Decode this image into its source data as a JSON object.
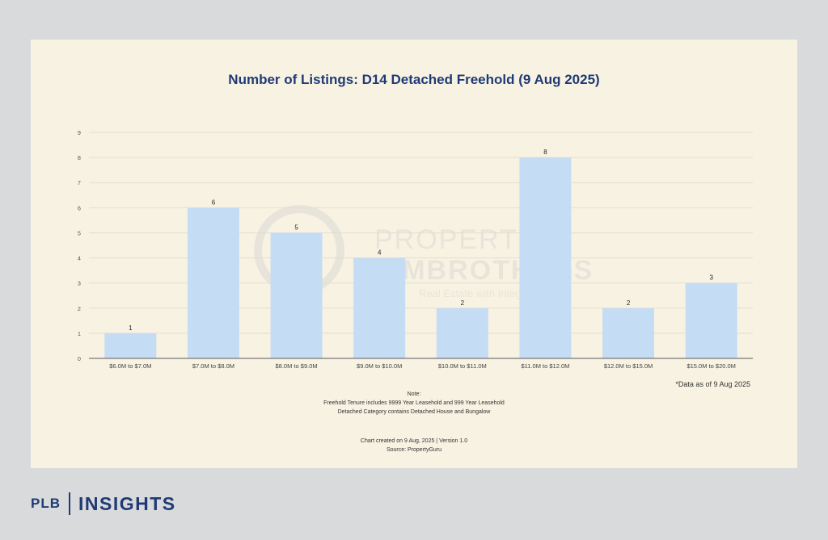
{
  "watermark": {
    "line1": "PROPERTY",
    "line2": "LIMBROTHERS",
    "line3": "Real Estate with Integrity"
  },
  "note": {
    "heading": "Note:",
    "line1": "Freehold Tenure includes 9999 Year Leasehold and 999 Year Leasehold",
    "line2": "Detached Category contains Detached House and Bungalow"
  },
  "credits": {
    "created": "Chart created on 9 Aug, 2025 | Version 1.0",
    "source": "Source: PropertyGuru"
  },
  "as_of": "*Data as of 9 Aug 2025",
  "brand": {
    "left": "PLB",
    "right": "INSIGHTS"
  },
  "colors": {
    "bar": "#c5dcf5",
    "title": "#1f3a74",
    "card": "#f8f2e3",
    "page": "#d9dadb"
  },
  "chart_data": {
    "type": "bar",
    "title": "Number of Listings: D14 Detached Freehold (9 Aug 2025)",
    "xlabel": "",
    "ylabel": "",
    "categories": [
      "$6.0M to $7.0M",
      "$7.0M to $8.0M",
      "$8.0M to $9.0M",
      "$9.0M to $10.0M",
      "$10.0M to $11.0M",
      "$11.0M to $12.0M",
      "$12.0M to $15.0M",
      "$15.0M to $20.0M"
    ],
    "values": [
      1,
      6,
      5,
      4,
      2,
      8,
      2,
      3
    ],
    "ylim": [
      0,
      9
    ],
    "yticks": [
      0,
      1,
      2,
      3,
      4,
      5,
      6,
      7,
      8,
      9
    ],
    "grid": true,
    "legend": "none"
  }
}
